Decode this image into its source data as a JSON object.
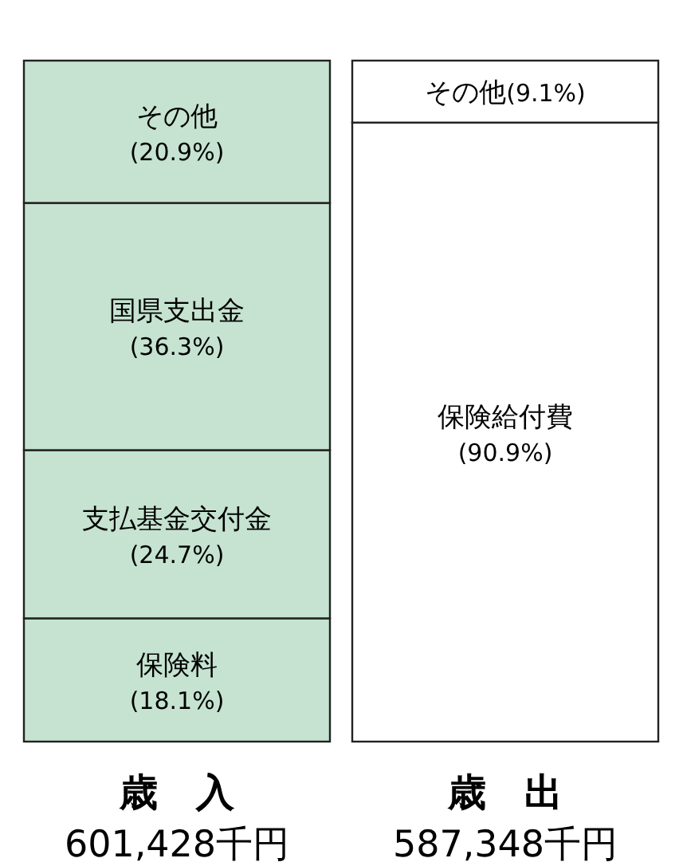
{
  "chart_data": {
    "type": "bar",
    "stacked": true,
    "categories": [
      "歳　入",
      "歳　出"
    ],
    "annotations": [
      "601,428千円",
      "587,348千円"
    ],
    "series": [
      {
        "name": "保険料",
        "color": "#c5e3d0",
        "values": [
          18.1,
          null
        ],
        "value_labels": [
          "(18.1%)",
          null
        ]
      },
      {
        "name": "支払基金交付金",
        "color": "#c5e3d0",
        "values": [
          24.7,
          null
        ],
        "value_labels": [
          "(24.7%)",
          null
        ]
      },
      {
        "name": "国県支出金",
        "color": "#c5e3d0",
        "values": [
          36.3,
          null
        ],
        "value_labels": [
          "(36.3%)",
          null
        ]
      },
      {
        "name": "その他",
        "color": "#c5e3d0",
        "values": [
          20.9,
          null
        ],
        "value_labels": [
          "(20.9%)",
          null
        ]
      },
      {
        "name": "保険給付費",
        "color": "#ffffff",
        "values": [
          null,
          90.9
        ],
        "value_labels": [
          null,
          "(90.9%)"
        ]
      },
      {
        "name": "その他",
        "color": "#ffffff",
        "values": [
          null,
          9.1
        ],
        "value_labels": [
          null,
          "(9.1%)"
        ]
      }
    ]
  }
}
